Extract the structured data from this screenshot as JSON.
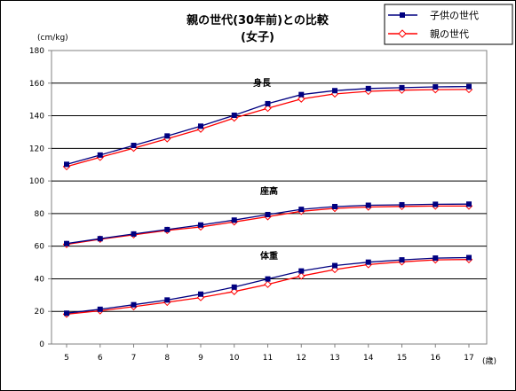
{
  "chart_data": {
    "type": "line",
    "title": "親の世代(30年前)との比較",
    "subtitle": "(女子)",
    "ylabel": "(cm/kg)",
    "xlabel": "(歳)",
    "x": [
      5,
      6,
      7,
      8,
      9,
      10,
      11,
      12,
      13,
      14,
      15,
      16,
      17
    ],
    "ylim": [
      0,
      180
    ],
    "yticks": [
      0,
      20,
      40,
      60,
      80,
      100,
      120,
      140,
      160,
      180
    ],
    "grid": true,
    "legend_position": "top-right",
    "series": [
      {
        "name": "子供の世代",
        "color": "#000080",
        "marker": "square-filled",
        "groups": [
          {
            "label": "身長",
            "values": [
              110.2,
              115.9,
              121.8,
              127.6,
              133.6,
              140.3,
              147.4,
              153.0,
              155.4,
              156.7,
              157.2,
              157.7,
              157.9
            ]
          },
          {
            "label": "座高",
            "values": [
              61.6,
              64.6,
              67.5,
              70.2,
              73.0,
              76.0,
              79.4,
              82.6,
              84.3,
              85.1,
              85.4,
              85.7,
              85.8
            ]
          },
          {
            "label": "体重",
            "values": [
              18.9,
              21.3,
              24.1,
              27.0,
              30.6,
              34.9,
              39.9,
              44.8,
              48.1,
              50.2,
              51.6,
              52.7,
              53.0
            ]
          }
        ]
      },
      {
        "name": "親の世代",
        "color": "#ff0000",
        "marker": "diamond-open",
        "groups": [
          {
            "label": "身長",
            "values": [
              108.8,
              114.5,
              120.1,
              125.9,
              131.8,
              138.6,
              144.6,
              150.3,
              153.4,
              155.0,
              155.7,
              156.0,
              156.1
            ]
          },
          {
            "label": "座高",
            "values": [
              61.1,
              64.3,
              67.0,
              69.7,
              71.8,
              74.9,
              78.1,
              81.4,
              83.2,
              84.0,
              84.4,
              84.6,
              84.6
            ]
          },
          {
            "label": "体重",
            "values": [
              18.3,
              20.4,
              22.9,
              25.6,
              28.5,
              32.2,
              36.6,
              41.7,
              45.7,
              48.7,
              50.4,
              51.6,
              51.8
            ]
          }
        ]
      }
    ]
  }
}
